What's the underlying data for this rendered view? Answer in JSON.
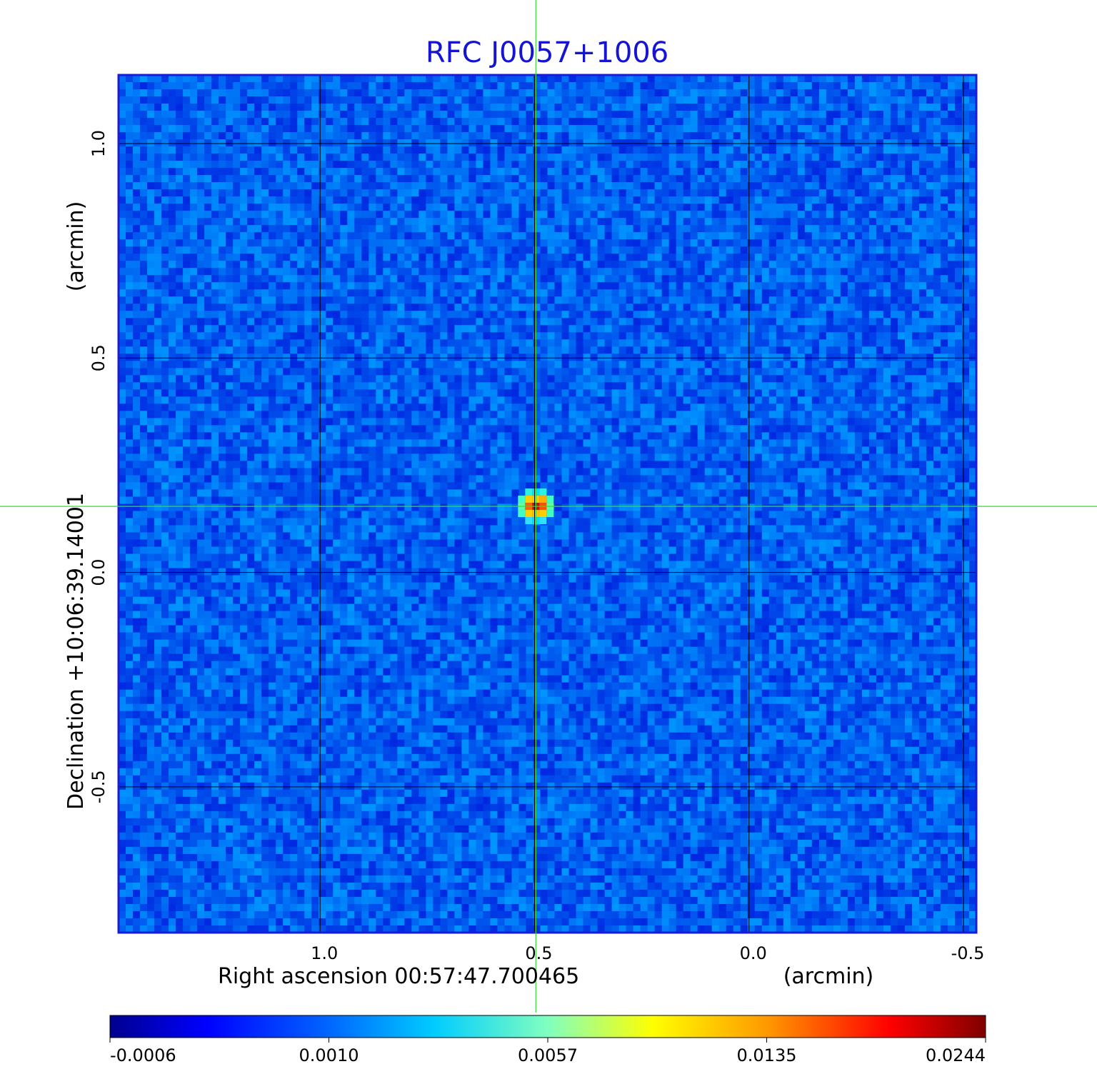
{
  "chart_data": {
    "type": "heatmap",
    "title": "RFC J0057+1006",
    "xlabel": "Right ascension  00:57:47.700465",
    "xunit": "(arcmin)",
    "ylabel": "Declination  +10:06:39.14001",
    "yunit": "(arcmin)",
    "x_ticks": [
      "1.0",
      "0.5",
      "0.0",
      "-0.5"
    ],
    "x_tick_values": [
      1.0,
      0.5,
      0.0,
      -0.5
    ],
    "y_ticks": [
      "1.0",
      "0.5",
      "0.0",
      "-0.5"
    ],
    "y_tick_values": [
      1.0,
      0.5,
      0.0,
      -0.5
    ],
    "xlim": [
      1.47,
      -0.53
    ],
    "ylim": [
      -0.84,
      1.16
    ],
    "grid": true,
    "crosshair": {
      "x": 0.497,
      "y": 0.154,
      "color": "#33dd33"
    },
    "source_peak": {
      "x": 0.497,
      "y": 0.154,
      "value": 0.0244
    },
    "background_level_range": [
      -0.0006,
      0.001
    ],
    "colormap": "jet",
    "colorbar": {
      "ticks": [
        "-0.0006",
        "0.0010",
        "0.0057",
        "0.0135",
        "0.0244"
      ],
      "colors": [
        "#00008f",
        "#0000ff",
        "#00ffff",
        "#ffff00",
        "#ff0000",
        "#800000"
      ],
      "placement": "bottom"
    },
    "frame_color": "#1a1ad9"
  }
}
